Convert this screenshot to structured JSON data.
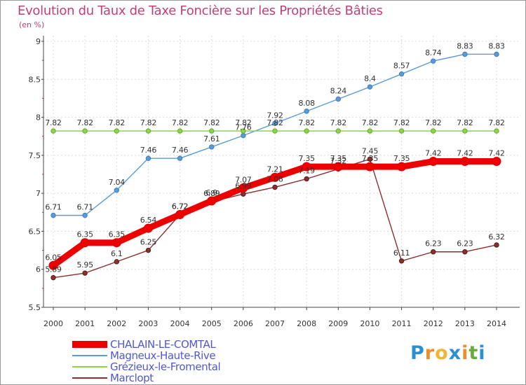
{
  "title": "Evolution du Taux de Taxe Foncière sur les Propriétés Bâties",
  "subtitle": "(en %)",
  "logo": {
    "letters": [
      "P",
      "r",
      "o",
      "x",
      "i",
      "t",
      "i"
    ],
    "colors": [
      "#2b8fd6",
      "#e8912a",
      "#f2b635",
      "#2b8fd6",
      "#e8912a",
      "#6aab3a",
      "#2b8fd6"
    ]
  },
  "chart_data": {
    "type": "line",
    "title": "Evolution du Taux de Taxe Foncière sur les Propriétés Bâties",
    "ylabel": "(en %)",
    "xlabel": "",
    "categories": [
      "2000",
      "2001",
      "2002",
      "2003",
      "2004",
      "2005",
      "2006",
      "2007",
      "2008",
      "2009",
      "2010",
      "2011",
      "2012",
      "2013",
      "2014"
    ],
    "ylim": [
      5.5,
      9
    ],
    "yticks": [
      "5.5",
      "6",
      "6.5",
      "7",
      "7.5",
      "8",
      "8.5",
      "9"
    ],
    "grid": true,
    "legend_position": "bottom-left",
    "series": [
      {
        "name": "Magneux-Haute-Rive",
        "color": "#5b9bd5",
        "labels": [
          "6.71",
          "6.71",
          "7.04",
          "7.46",
          "7.46",
          "7.61",
          "7.76",
          "7.92",
          "8.08",
          "8.24",
          "8.4",
          "8.57",
          "8.74",
          "8.83",
          "8.83"
        ],
        "values": [
          6.71,
          6.71,
          7.04,
          7.46,
          7.46,
          7.61,
          7.76,
          7.92,
          8.08,
          8.24,
          8.4,
          8.57,
          8.74,
          8.83,
          8.83
        ]
      },
      {
        "name": "Grézieux-le-Fromental",
        "color": "#8ed44a",
        "labels": [
          "7.82",
          "7.82",
          "7.82",
          "7.82",
          "7.82",
          "7.82",
          "7.82",
          "7.82",
          "7.82",
          "7.82",
          "7.82",
          "7.82",
          "7.82",
          "7.82",
          "7.82"
        ],
        "values": [
          7.82,
          7.82,
          7.82,
          7.82,
          7.82,
          7.82,
          7.82,
          7.82,
          7.82,
          7.82,
          7.82,
          7.82,
          7.82,
          7.82,
          7.82
        ]
      },
      {
        "name": "Marclopt",
        "color": "#8b2f2f",
        "labels": [
          "5.89",
          "5.95",
          "6.1",
          "6.25",
          "6.72",
          "6.89",
          "6.99",
          "7.08",
          "7.19",
          "7.32",
          "7.45",
          "6.11",
          "6.23",
          "6.23",
          "6.32"
        ],
        "values": [
          5.89,
          5.95,
          6.1,
          6.25,
          6.72,
          6.89,
          6.99,
          7.08,
          7.19,
          7.32,
          7.45,
          6.11,
          6.23,
          6.23,
          6.32
        ]
      },
      {
        "name": "CHALAIN-LE-COMTAL",
        "color": "#ee0000",
        "labels": [
          "6.05",
          "6.35",
          "6.35",
          "6.54",
          "6.72",
          "6.9",
          "7.07",
          "7.21",
          "7.35",
          "7.35",
          "7.35",
          "7.35",
          "7.42",
          "7.42",
          "7.42"
        ],
        "values": [
          6.05,
          6.35,
          6.35,
          6.54,
          6.72,
          6.9,
          7.07,
          7.21,
          7.35,
          7.35,
          7.35,
          7.35,
          7.42,
          7.42,
          7.42
        ]
      }
    ],
    "legend": [
      "CHALAIN-LE-COMTAL",
      "Magneux-Haute-Rive",
      "Grézieux-le-Fromental",
      "Marclopt"
    ]
  }
}
